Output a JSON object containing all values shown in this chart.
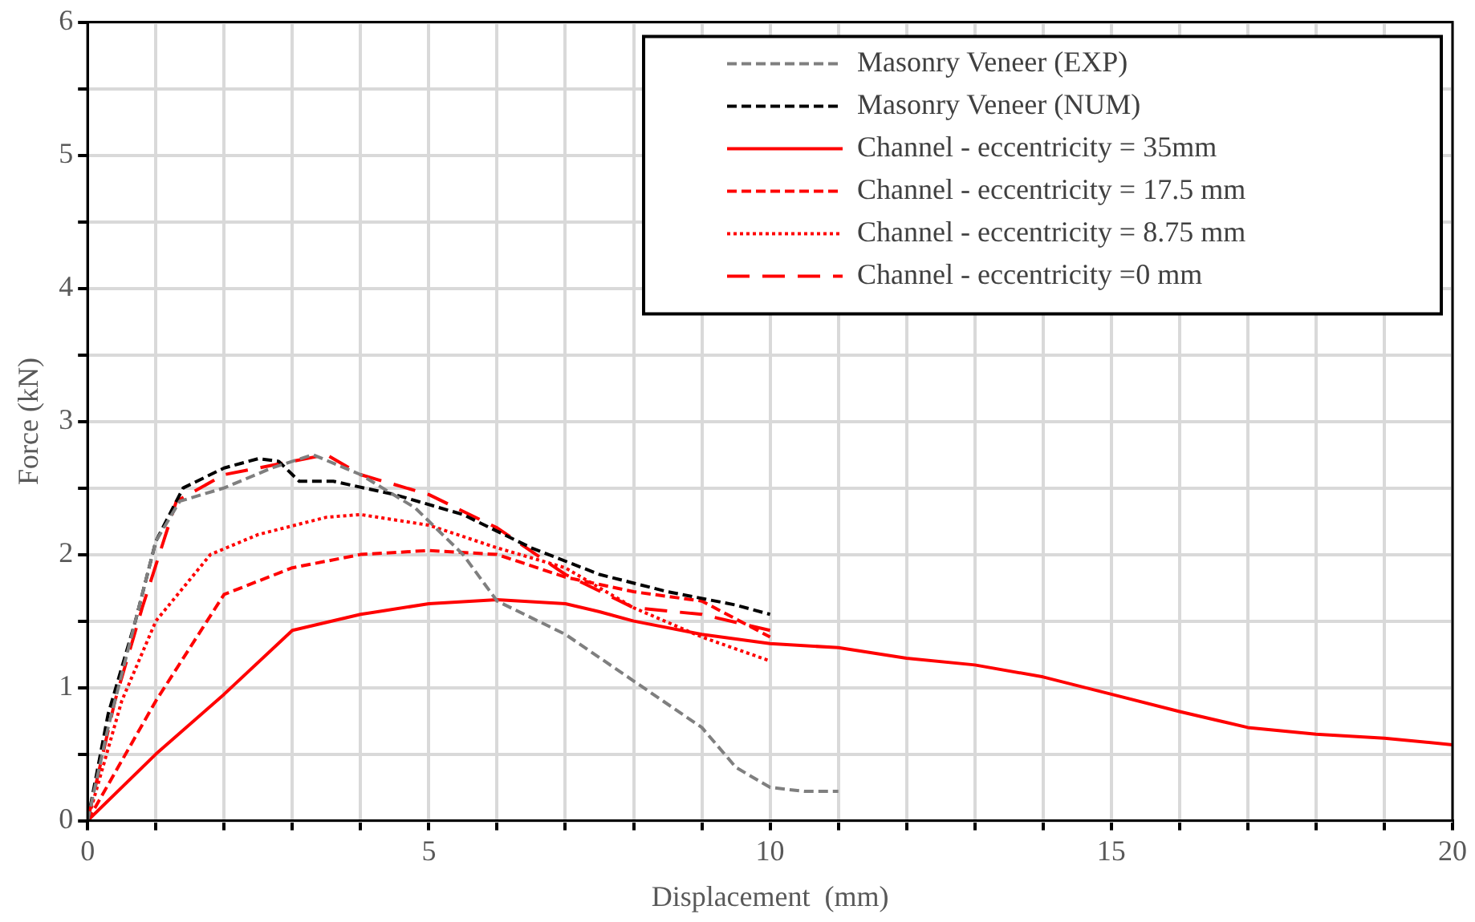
{
  "chart_data": {
    "type": "line",
    "xlabel": "Displacement  (mm)",
    "ylabel": "Force (kN)",
    "xlim": [
      0,
      20
    ],
    "ylim": [
      0,
      6
    ],
    "xticks": [
      0,
      {
        "value": 1,
        "label": null
      },
      {
        "value": 2,
        "label": null
      },
      {
        "value": 3,
        "label": null
      },
      {
        "value": 4,
        "label": null
      },
      5,
      {
        "value": 6,
        "label": null
      },
      {
        "value": 7,
        "label": null
      },
      {
        "value": 8,
        "label": null
      },
      {
        "value": 9,
        "label": null
      },
      10,
      {
        "value": 11,
        "label": null
      },
      {
        "value": 12,
        "label": null
      },
      {
        "value": 13,
        "label": null
      },
      {
        "value": 14,
        "label": null
      },
      15,
      {
        "value": 16,
        "label": null
      },
      {
        "value": 17,
        "label": null
      },
      {
        "value": 18,
        "label": null
      },
      {
        "value": 19,
        "label": null
      },
      20
    ],
    "yticks": [
      0,
      {
        "value": 0.5,
        "label": null
      },
      1,
      {
        "value": 1.5,
        "label": null
      },
      2,
      {
        "value": 2.5,
        "label": null
      },
      3,
      {
        "value": 3.5,
        "label": null
      },
      4,
      {
        "value": 4.5,
        "label": null
      },
      5,
      {
        "value": 5.5,
        "label": null
      },
      6
    ],
    "grid": true,
    "legend": "top right",
    "marker": "none",
    "series": [
      {
        "name": "Masonry Veneer (EXP)",
        "color": "#7f7f7f",
        "line_style": "dashed",
        "x": [
          0,
          0.3,
          0.65,
          1,
          1.35,
          2,
          2.7,
          3.3,
          4,
          4.8,
          5.5,
          6,
          7,
          8,
          9,
          9.5,
          10,
          10.5,
          11
        ],
        "values": [
          0,
          0.7,
          1.4,
          2.1,
          2.4,
          2.5,
          2.65,
          2.75,
          2.6,
          2.35,
          2.0,
          1.65,
          1.4,
          1.05,
          0.7,
          0.4,
          0.25,
          0.22,
          0.22
        ]
      },
      {
        "name": "Masonry Veneer (NUM)",
        "color": "#000000",
        "line_style": "dashed",
        "x": [
          0,
          0.3,
          0.7,
          1,
          1.4,
          2,
          2.5,
          2.8,
          3.1,
          3.6,
          4.5,
          5.5,
          6.5,
          7.5,
          8.5,
          9.5,
          10
        ],
        "values": [
          0,
          0.8,
          1.5,
          2.1,
          2.5,
          2.65,
          2.72,
          2.7,
          2.55,
          2.55,
          2.45,
          2.3,
          2.05,
          1.85,
          1.72,
          1.62,
          1.55
        ]
      },
      {
        "name": "Channel - eccentricity = 35mm",
        "color": "#ff0000",
        "line_style": "solid",
        "x": [
          0,
          1,
          2,
          3,
          4,
          5,
          6,
          7,
          7.5,
          8,
          9,
          10,
          11,
          12,
          13,
          14,
          15,
          16,
          17,
          18,
          19,
          20
        ],
        "values": [
          0,
          0.5,
          0.95,
          1.43,
          1.55,
          1.63,
          1.66,
          1.63,
          1.57,
          1.5,
          1.4,
          1.33,
          1.3,
          1.22,
          1.17,
          1.08,
          0.95,
          0.82,
          0.7,
          0.65,
          0.62,
          0.57
        ]
      },
      {
        "name": "Channel - eccentricity = 17.5 mm",
        "color": "#ff0000",
        "line_style": "dashed",
        "x": [
          0,
          1,
          2,
          3,
          4,
          5,
          6,
          7,
          8,
          9,
          10
        ],
        "values": [
          0,
          0.9,
          1.7,
          1.9,
          2.0,
          2.03,
          2.0,
          1.83,
          1.72,
          1.65,
          1.38
        ]
      },
      {
        "name": "Channel - eccentricity = 8.75 mm",
        "color": "#ff0000",
        "line_style": "dotted",
        "x": [
          0,
          0.5,
          1,
          1.8,
          2.5,
          3.5,
          4,
          5,
          6,
          7,
          8,
          9,
          10
        ],
        "values": [
          0,
          0.9,
          1.5,
          2.0,
          2.15,
          2.28,
          2.3,
          2.22,
          2.05,
          1.9,
          1.6,
          1.38,
          1.2
        ]
      },
      {
        "name": "Channel - eccentricity =0 mm",
        "color": "#ff0000",
        "line_style": "dashed",
        "x": [
          0,
          0.4,
          0.8,
          1.3,
          2,
          3,
          3.5,
          4,
          5,
          6,
          7,
          8,
          9,
          10
        ],
        "values": [
          0,
          0.9,
          1.6,
          2.4,
          2.6,
          2.7,
          2.75,
          2.6,
          2.45,
          2.2,
          1.85,
          1.6,
          1.55,
          1.43
        ]
      }
    ]
  }
}
